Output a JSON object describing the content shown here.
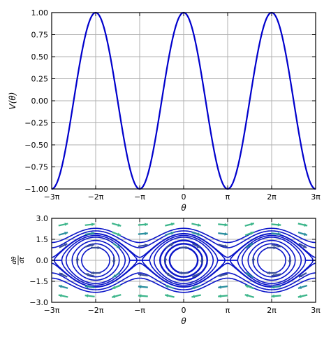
{
  "chart_data": [
    {
      "type": "line",
      "title": "",
      "xlabel": "θ",
      "ylabel": "V(θ)",
      "function": "cos(θ)",
      "xlim": [
        -9.42478,
        9.42478
      ],
      "ylim": [
        -1.0,
        1.0
      ],
      "grid": true,
      "line_color": "#0000cc",
      "x_ticks": [
        {
          "value": -9.42478,
          "label": "−3π"
        },
        {
          "value": -6.28319,
          "label": "−2π"
        },
        {
          "value": -3.14159,
          "label": "−π"
        },
        {
          "value": 0,
          "label": "0"
        },
        {
          "value": 3.14159,
          "label": "π"
        },
        {
          "value": 6.28319,
          "label": "2π"
        },
        {
          "value": 9.42478,
          "label": "3π"
        }
      ],
      "y_ticks": [
        {
          "value": 1.0,
          "label": "1.00"
        },
        {
          "value": 0.75,
          "label": "0.75"
        },
        {
          "value": 0.5,
          "label": "0.50"
        },
        {
          "value": 0.25,
          "label": "0.25"
        },
        {
          "value": 0.0,
          "label": "0.00"
        },
        {
          "value": -0.25,
          "label": "−0.25"
        },
        {
          "value": -0.5,
          "label": "−0.50"
        },
        {
          "value": -0.75,
          "label": "−0.75"
        },
        {
          "value": -1.0,
          "label": "−1.00"
        }
      ],
      "series": [
        {
          "x": [
            -9.42478,
            -7.85398,
            -6.28319,
            -4.71239,
            -3.14159,
            -1.5708,
            0,
            1.5708,
            3.14159,
            4.71239,
            6.28319,
            7.85398,
            9.42478
          ],
          "y": [
            -1,
            0,
            1,
            0,
            -1,
            0,
            1,
            0,
            -1,
            0,
            1,
            0,
            -1
          ]
        }
      ]
    },
    {
      "type": "streamplot",
      "title": "",
      "xlabel": "θ",
      "ylabel": "dθ/dt",
      "ylabel_num": "dθ",
      "ylabel_den": "dt",
      "xlim": [
        -9.42478,
        9.42478
      ],
      "ylim": [
        -3.0,
        3.0
      ],
      "grid": true,
      "line_color": "#0a14c8",
      "x_ticks": [
        {
          "value": -9.42478,
          "label": "−3π"
        },
        {
          "value": -6.28319,
          "label": "−2π"
        },
        {
          "value": -3.14159,
          "label": "−π"
        },
        {
          "value": 0,
          "label": "0"
        },
        {
          "value": 3.14159,
          "label": "π"
        },
        {
          "value": 6.28319,
          "label": "2π"
        },
        {
          "value": 9.42478,
          "label": "3π"
        }
      ],
      "y_ticks": [
        {
          "value": 3.0,
          "label": "3.0"
        },
        {
          "value": 1.5,
          "label": "1.5"
        },
        {
          "value": 0.0,
          "label": "0.0"
        },
        {
          "value": -1.5,
          "label": "−1.5"
        },
        {
          "value": -3.0,
          "label": "−3.0"
        }
      ],
      "centers": [
        -6.28319,
        0,
        6.28319
      ],
      "orbit_energies": [
        1.5,
        2.5,
        3.6,
        4.9,
        6.4
      ],
      "open_energies": [
        -0.5,
        0.05,
        0.9,
        1.8
      ],
      "arrow_colors": [
        "#4b1a5e",
        "#3a4f9a",
        "#2a8f9e",
        "#3bb58a",
        "#8fd14f"
      ]
    }
  ]
}
